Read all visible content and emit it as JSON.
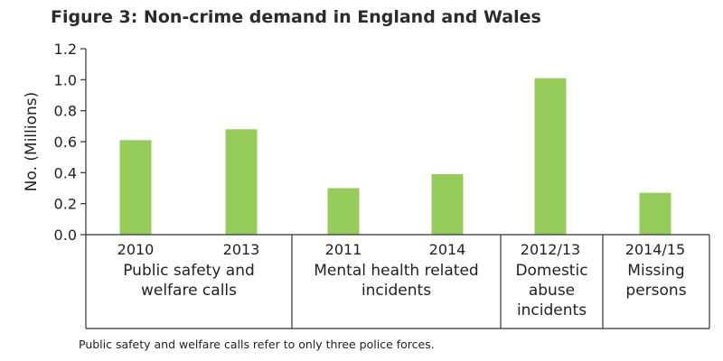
{
  "chart_data": {
    "type": "bar",
    "title": "Figure 3: Non-crime demand in England and Wales",
    "ylabel": "No. (Millions)",
    "xlabel": "",
    "ylim": [
      0,
      1.2
    ],
    "yticks": [
      "0.0",
      "0.2",
      "0.4",
      "0.6",
      "0.8",
      "1.0",
      "1.2"
    ],
    "grid": false,
    "bar_color": "#95cc5a",
    "categories": [
      "2010",
      "2013",
      "2011",
      "2014",
      "2012/13",
      "2014/15"
    ],
    "values": [
      0.61,
      0.68,
      0.3,
      0.39,
      1.01,
      0.27
    ],
    "groups": [
      {
        "label_lines": [
          "Public safety and",
          "welfare calls"
        ],
        "categories": [
          "2010",
          "2013"
        ]
      },
      {
        "label_lines": [
          "Mental health related",
          "incidents"
        ],
        "categories": [
          "2011",
          "2014"
        ]
      },
      {
        "label_lines": [
          "Domestic",
          "abuse",
          "incidents"
        ],
        "categories": [
          "2012/13"
        ]
      },
      {
        "label_lines": [
          "Missing",
          "persons"
        ],
        "categories": [
          "2014/15"
        ]
      }
    ]
  },
  "footnote": "Public safety and welfare calls refer to only three police forces."
}
